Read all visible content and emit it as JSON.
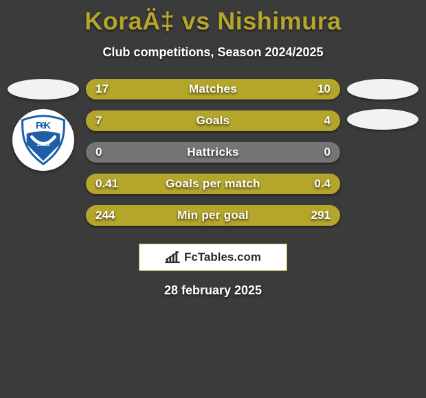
{
  "colors": {
    "page_bg": "#3b3b3b",
    "title": "#b4a52b",
    "subtitle": "#ffffff",
    "ellipse_bg": "#f2f2f2",
    "bar_track": "#757575",
    "bar_fill": "#b4a52b",
    "brand_bg": "#ffffff",
    "brand_border": "#b4a52b",
    "brand_text": "#2b2b2b",
    "brand_icon": "#2b2b2b",
    "date_text": "#ffffff",
    "badge_primary": "#1e5fa8",
    "badge_accent": "#ffffff"
  },
  "header": {
    "title": "KoraÄ‡ vs Nishimura",
    "subtitle": "Club competitions, Season 2024/2025"
  },
  "club_badge": {
    "letters": "F K",
    "year": "1922"
  },
  "stats": [
    {
      "label": "Matches",
      "left_val": "17",
      "right_val": "10",
      "left_pct": 63,
      "right_pct": 37
    },
    {
      "label": "Goals",
      "left_val": "7",
      "right_val": "4",
      "left_pct": 64,
      "right_pct": 36
    },
    {
      "label": "Hattricks",
      "left_val": "0",
      "right_val": "0",
      "left_pct": 0,
      "right_pct": 0
    },
    {
      "label": "Goals per match",
      "left_val": "0.41",
      "right_val": "0.4",
      "left_pct": 51,
      "right_pct": 49
    },
    {
      "label": "Min per goal",
      "left_val": "244",
      "right_val": "291",
      "left_pct": 46,
      "right_pct": 54
    }
  ],
  "brand": {
    "text": "FcTables.com"
  },
  "date": "28 february 2025"
}
